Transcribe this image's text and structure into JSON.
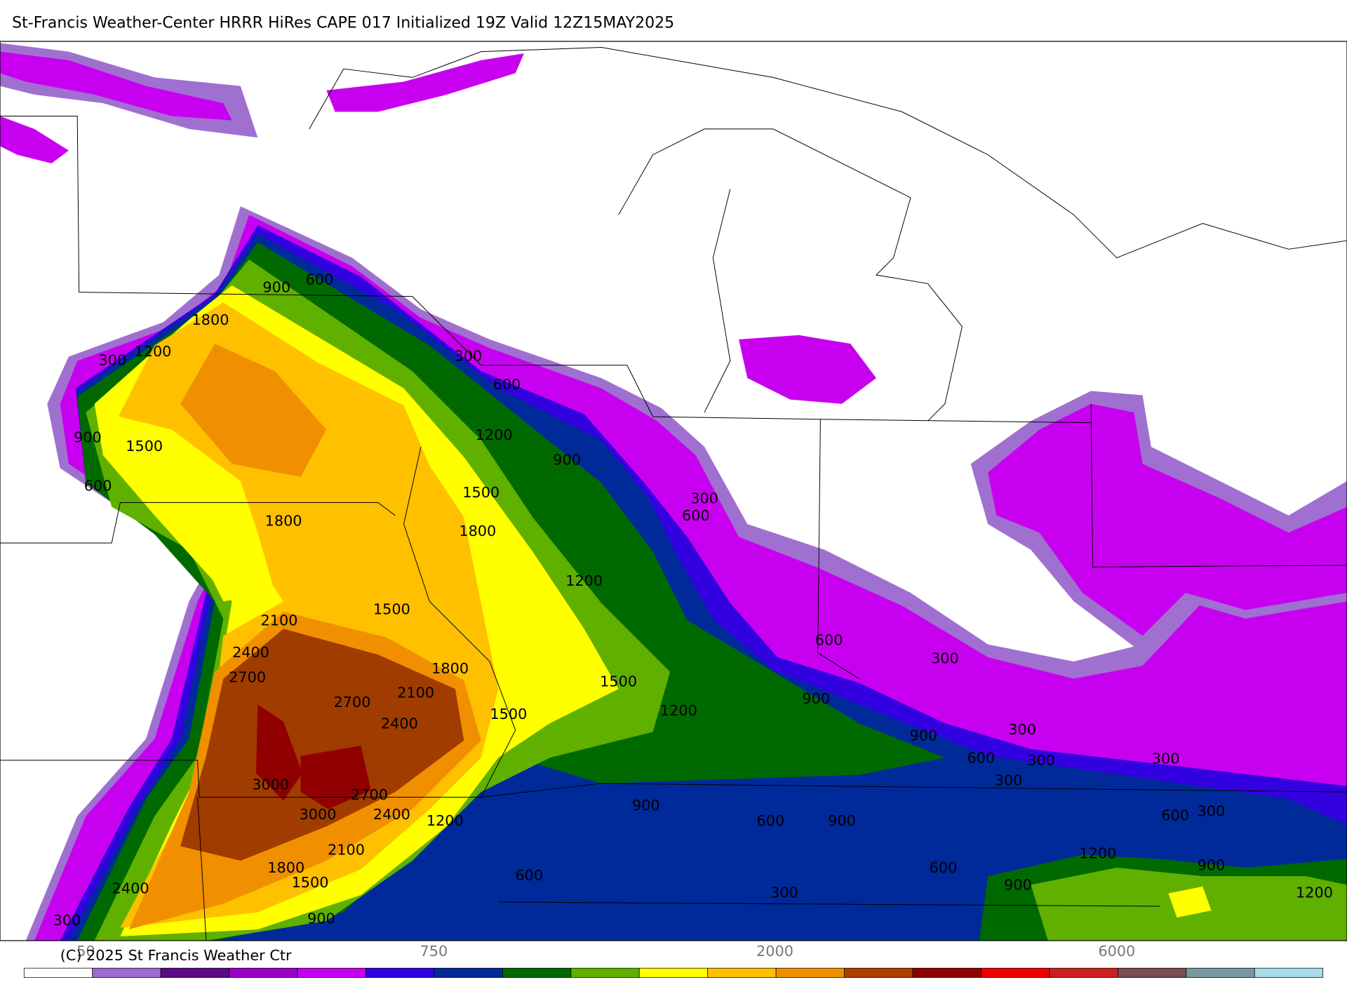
{
  "header": {
    "title": "St-Francis Weather-Center HRRR HiRes CAPE  017 Initialized  19Z Valid 12Z15MAY2025"
  },
  "map": {
    "contour_labels": [
      "600",
      "900",
      "1800",
      "1200",
      "300",
      "300",
      "600",
      "900",
      "1500",
      "1200",
      "900",
      "600",
      "1500",
      "300",
      "600",
      "1800",
      "1800",
      "1200",
      "1500",
      "2100",
      "600",
      "2400",
      "300",
      "2700",
      "1800",
      "1500",
      "2100",
      "900",
      "2700",
      "1200",
      "1500",
      "2400",
      "300",
      "900",
      "600",
      "300",
      "300",
      "3000",
      "300",
      "2700",
      "900",
      "300",
      "600",
      "3000",
      "2400",
      "1200",
      "600",
      "900",
      "2100",
      "1200",
      "900",
      "1800",
      "600",
      "1500",
      "600",
      "900",
      "2400",
      "300",
      "1200",
      "900",
      "300"
    ]
  },
  "colorbar": {
    "tick_labels": [
      "50",
      "750",
      "2000",
      "6000"
    ]
  },
  "footer": {
    "copyright": "(C) 2025 St Francis Weather Ctr"
  }
}
